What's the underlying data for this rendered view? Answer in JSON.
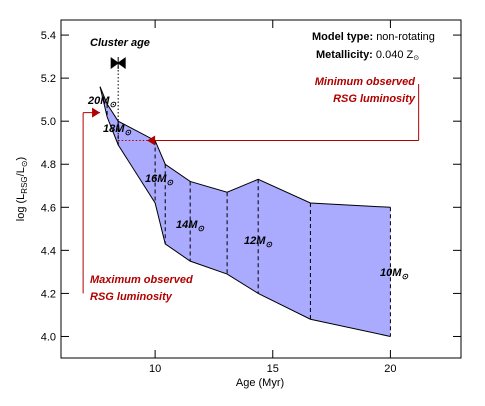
{
  "chart_data": {
    "type": "area",
    "x": [
      7.66,
      7.96,
      8.43,
      10.0,
      10.43,
      11.49,
      13.06,
      14.38,
      16.6,
      20.0
    ],
    "series": [
      {
        "name": "upper",
        "color": "#000000",
        "values": [
          5.16,
          5.08,
          5.0,
          4.91,
          4.8,
          4.72,
          4.67,
          4.73,
          4.62,
          4.6
        ]
      },
      {
        "name": "lower",
        "color": "#000000",
        "values": [
          5.16,
          5.02,
          4.89,
          4.62,
          4.43,
          4.35,
          4.29,
          4.2,
          4.08,
          4.0
        ]
      }
    ],
    "fill_color": "#aaaaff",
    "xlim": [
      6,
      23
    ],
    "ylim": [
      3.9,
      5.47
    ],
    "xticks": [
      10,
      15,
      20
    ],
    "yticks": [
      {
        "value": 4,
        "label": "4.0"
      },
      4.2,
      4.4,
      4.6,
      4.8,
      {
        "value": 5,
        "label": "5.0"
      },
      5.2,
      5.4
    ],
    "xlabel": "Age (Myr)",
    "ylabel": [
      "log (L",
      "RSG",
      "/L",
      "⊙",
      ")"
    ],
    "mass_labels": [
      "20M",
      "18M",
      "16M",
      "14M",
      "12M",
      "10M"
    ],
    "sun": "⊙",
    "cluster_age": {
      "label": "Cluster age",
      "value": 8.43,
      "y": 5.27
    },
    "min_observed": {
      "value": 4.91,
      "x_from": 8.43,
      "x_to": 21.2,
      "label": [
        "Minimum observed",
        "RSG luminosity"
      ],
      "color": "#b00000"
    },
    "max_observed": {
      "value": 5.04,
      "x_from": 6.94,
      "x_to": 7.66,
      "y_bottom": 4.2,
      "label": [
        "Maximum observed",
        "RSG luminosity"
      ],
      "color": "#b00000"
    },
    "model_type": {
      "label": "Model type:",
      "value": "non-rotating"
    },
    "metallicity": {
      "label": "Metallicity:",
      "value": "0.040 Z"
    }
  }
}
